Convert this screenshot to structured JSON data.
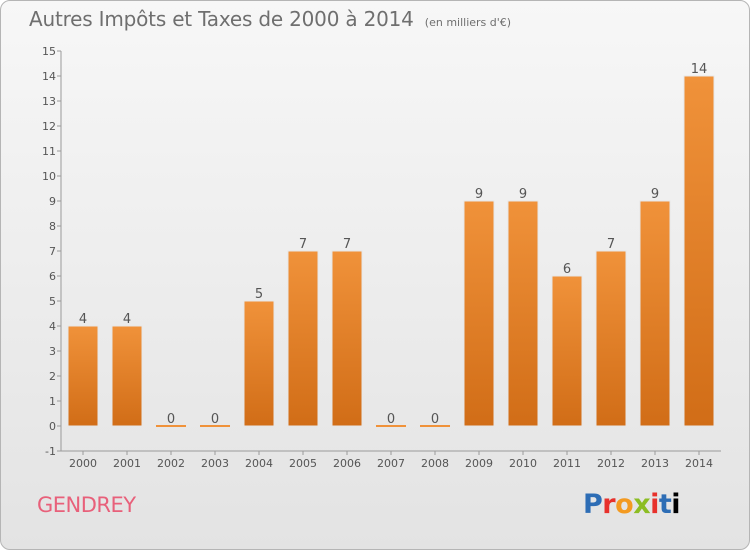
{
  "chart_data": {
    "type": "bar",
    "title": "Autres Impôts et Taxes de 2000 à 2014",
    "unit_label": "(en milliers d'€)",
    "categories": [
      "2000",
      "2001",
      "2002",
      "2003",
      "2004",
      "2005",
      "2006",
      "2007",
      "2008",
      "2009",
      "2010",
      "2011",
      "2012",
      "2013",
      "2014"
    ],
    "values": [
      4,
      4,
      0,
      0,
      5,
      7,
      7,
      0,
      0,
      9,
      9,
      6,
      7,
      9,
      14
    ],
    "ylim": [
      -1,
      15
    ],
    "yticks": [
      "-1",
      "0",
      "1",
      "2",
      "3",
      "4",
      "5",
      "6",
      "7",
      "8",
      "9",
      "10",
      "11",
      "12",
      "13",
      "14",
      "15"
    ],
    "xlabel": "",
    "ylabel": "",
    "grid": false,
    "bar_color": "#f0923a",
    "bar_color_dark": "#d16d17",
    "axis_color": "#9a9a9a"
  },
  "commune": "GENDREY",
  "brand": {
    "letters": [
      "P",
      "r",
      "o",
      "x",
      "i",
      "t",
      "i"
    ]
  }
}
